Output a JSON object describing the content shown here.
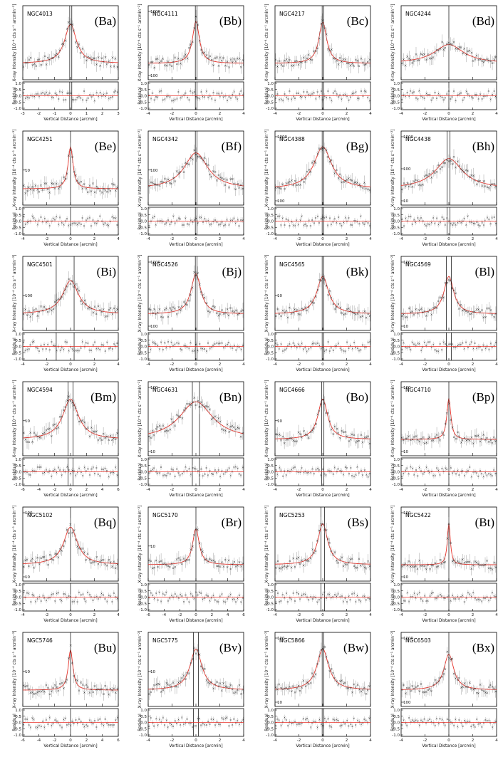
{
  "figure": {
    "common": {
      "xlabel": "Vertical Distance [arcmin]",
      "ylabel_top": "X-ray Intensity [10⁻⁴ cts s⁻¹ arcmin⁻²]",
      "ylabel_bottom": "Residual",
      "residual_ticks": [
        "1.0",
        "0.5",
        "0.0",
        "-0.5",
        "-1.0"
      ],
      "model_color": "#e8322a",
      "data_color": "#222222"
    }
  },
  "chart_data": [
    {
      "type": "scatter",
      "panel": "(Ba)",
      "name": "NGC4013",
      "xlim": [
        -3,
        3
      ],
      "xticks": [
        -3,
        -2,
        -1,
        0,
        1,
        2,
        3
      ],
      "yticks": [],
      "peak": 4.5,
      "base": 1.0,
      "width": 0.45,
      "vlines": [
        -0.05,
        0.08
      ],
      "log": true
    },
    {
      "type": "scatter",
      "panel": "(Bb)",
      "name": "NGC4111",
      "xlim": [
        -4,
        4
      ],
      "xticks": [
        -4,
        -2,
        0,
        2,
        4
      ],
      "yticks": [
        "1000",
        "100"
      ],
      "peak": 6.0,
      "base": 1.0,
      "width": 0.35,
      "vlines": [
        -0.05,
        0.08
      ],
      "log": true
    },
    {
      "type": "scatter",
      "panel": "(Bc)",
      "name": "NGC4217",
      "xlim": [
        -4,
        4
      ],
      "xticks": [
        -4,
        -2,
        0,
        2,
        4
      ],
      "yticks": [],
      "peak": 5.5,
      "base": 1.0,
      "width": 0.4,
      "vlines": [
        -0.05,
        0.08
      ],
      "log": true
    },
    {
      "type": "scatter",
      "panel": "(Bd)",
      "name": "NGC4244",
      "xlim": [
        -4,
        4
      ],
      "xticks": [
        -4,
        -2,
        0,
        2,
        4
      ],
      "yticks": [],
      "peak": 1.6,
      "base": 1.0,
      "width": 1.5,
      "vlines": [
        0
      ],
      "log": true
    },
    {
      "type": "scatter",
      "panel": "(Be)",
      "name": "NGC4251",
      "xlim": [
        -4,
        4
      ],
      "xticks": [
        -4,
        -2,
        0,
        2,
        4
      ],
      "yticks": [
        "10"
      ],
      "peak": 6.0,
      "base": 1.0,
      "width": 0.25,
      "vlines": [
        0
      ],
      "log": true
    },
    {
      "type": "scatter",
      "panel": "(Bf)",
      "name": "NGC4342",
      "xlim": [
        -4,
        4
      ],
      "xticks": [
        -4,
        -2,
        0,
        2,
        4
      ],
      "yticks": [
        "100"
      ],
      "peak": 3.5,
      "base": 1.0,
      "width": 1.2,
      "vlines": [
        -0.05,
        0.08
      ],
      "log": true
    },
    {
      "type": "scatter",
      "panel": "(Bg)",
      "name": "NGC4388",
      "xlim": [
        -4,
        4
      ],
      "xticks": [
        -4,
        -2,
        0,
        2,
        4
      ],
      "yticks": [
        "1000",
        "100"
      ],
      "peak": 6.0,
      "base": 1.0,
      "width": 0.9,
      "vlines": [
        -0.05,
        0.08
      ],
      "log": true
    },
    {
      "type": "scatter",
      "panel": "(Bh)",
      "name": "NGC4438",
      "xlim": [
        -4,
        4
      ],
      "xticks": [
        -4,
        -2,
        0,
        2,
        4
      ],
      "yticks": [
        "1000",
        "100",
        "10"
      ],
      "peak": 2.5,
      "base": 1.0,
      "width": 1.4,
      "vlines": [
        -0.15,
        0.1
      ],
      "log": true
    },
    {
      "type": "scatter",
      "panel": "(Bi)",
      "name": "NGC4501",
      "xlim": [
        -4,
        4
      ],
      "xticks": [
        -4,
        -2,
        0,
        2,
        4
      ],
      "yticks": [
        "100"
      ],
      "peak": 3.0,
      "base": 1.0,
      "width": 0.8,
      "vlines": [
        -1.2,
        0.3
      ],
      "log": true
    },
    {
      "type": "scatter",
      "panel": "(Bj)",
      "name": "NGC4526",
      "xlim": [
        -4,
        4
      ],
      "xticks": [
        -4,
        -2,
        0,
        2,
        4
      ],
      "yticks": [
        "1000",
        "100"
      ],
      "peak": 5.0,
      "base": 1.0,
      "width": 0.5,
      "vlines": [
        -0.05,
        0.08
      ],
      "log": true
    },
    {
      "type": "scatter",
      "panel": "(Bk)",
      "name": "NGC4565",
      "xlim": [
        -4,
        4
      ],
      "xticks": [
        -4,
        -2,
        0,
        2,
        4
      ],
      "yticks": [
        "10"
      ],
      "peak": 4.0,
      "base": 1.0,
      "width": 0.6,
      "vlines": [
        -0.05,
        0.08
      ],
      "log": true
    },
    {
      "type": "scatter",
      "panel": "(Bl)",
      "name": "NGC4569",
      "xlim": [
        -4,
        4
      ],
      "xticks": [
        -4,
        -2,
        0,
        2,
        4
      ],
      "yticks": [
        "100",
        "10"
      ],
      "peak": 4.0,
      "base": 1.0,
      "width": 0.5,
      "vlines": [
        -0.2,
        0.2
      ],
      "log": true
    },
    {
      "type": "scatter",
      "panel": "(Bm)",
      "name": "NGC4594",
      "xlim": [
        -6,
        6
      ],
      "xticks": [
        -6,
        -4,
        -2,
        0,
        2,
        4,
        6
      ],
      "yticks": [
        "10"
      ],
      "peak": 5.0,
      "base": 1.0,
      "width": 1.2,
      "vlines": [
        -0.3,
        0.3
      ],
      "log": true
    },
    {
      "type": "scatter",
      "panel": "(Bn)",
      "name": "NGC4631",
      "xlim": [
        -4,
        4
      ],
      "xticks": [
        -4,
        -2,
        0,
        2,
        4
      ],
      "yticks": [
        "100",
        "10"
      ],
      "peak": 4.0,
      "base": 1.0,
      "width": 1.7,
      "vlines": [
        -0.3,
        0.3
      ],
      "log": true
    },
    {
      "type": "scatter",
      "panel": "(Bo)",
      "name": "NGC4666",
      "xlim": [
        -4,
        4
      ],
      "xticks": [
        -4,
        -2,
        0,
        2,
        4
      ],
      "yticks": [
        "10"
      ],
      "peak": 5.0,
      "base": 1.0,
      "width": 0.5,
      "vlines": [
        -0.1,
        0.1
      ],
      "log": true
    },
    {
      "type": "scatter",
      "panel": "(Bp)",
      "name": "NGC4710",
      "xlim": [
        -4,
        4
      ],
      "xticks": [
        -4,
        -2,
        0,
        2,
        4
      ],
      "yticks": [
        "100",
        "10"
      ],
      "peak": 5.5,
      "base": 1.0,
      "width": 0.2,
      "vlines": [
        0
      ],
      "log": true
    },
    {
      "type": "scatter",
      "panel": "(Bq)",
      "name": "NGC5102",
      "xlim": [
        -4,
        4
      ],
      "xticks": [
        -4,
        -2,
        0,
        2,
        4
      ],
      "yticks": [
        "100",
        "10"
      ],
      "peak": 4.0,
      "base": 1.0,
      "width": 0.7,
      "vlines": [
        0
      ],
      "log": true
    },
    {
      "type": "scatter",
      "panel": "(Br)",
      "name": "NGC5170",
      "xlim": [
        -6,
        6
      ],
      "xticks": [
        -6,
        -4,
        -2,
        0,
        2,
        4,
        6
      ],
      "yticks": [
        "10"
      ],
      "peak": 3.5,
      "base": 1.0,
      "width": 0.5,
      "vlines": [
        0
      ],
      "log": true
    },
    {
      "type": "scatter",
      "panel": "(Bs)",
      "name": "NGC5253",
      "xlim": [
        -4,
        4
      ],
      "xticks": [
        -4,
        -2,
        0,
        2,
        4
      ],
      "yticks": [],
      "peak": 5.5,
      "base": 1.0,
      "width": 0.5,
      "vlines": [
        -0.15,
        0.15
      ],
      "log": true
    },
    {
      "type": "scatter",
      "panel": "(Bt)",
      "name": "NGC5422",
      "xlim": [
        -4,
        4
      ],
      "xticks": [
        -4,
        -2,
        0,
        2,
        4
      ],
      "yticks": [
        "100",
        "10"
      ],
      "peak": 6.0,
      "base": 1.0,
      "width": 0.15,
      "vlines": [
        0
      ],
      "log": true
    },
    {
      "type": "scatter",
      "panel": "(Bu)",
      "name": "NGC5746",
      "xlim": [
        -6,
        6
      ],
      "xticks": [
        -6,
        -4,
        -2,
        0,
        2,
        4,
        6
      ],
      "yticks": [
        "10"
      ],
      "peak": 5.0,
      "base": 1.0,
      "width": 0.35,
      "vlines": [
        0
      ],
      "log": true
    },
    {
      "type": "scatter",
      "panel": "(Bv)",
      "name": "NGC5775",
      "xlim": [
        -4,
        4
      ],
      "xticks": [
        -4,
        -2,
        0,
        2,
        4
      ],
      "yticks": [
        "10"
      ],
      "peak": 5.5,
      "base": 1.0,
      "width": 0.6,
      "vlines": [
        -0.2,
        0.2
      ],
      "log": true
    },
    {
      "type": "scatter",
      "panel": "(Bw)",
      "name": "NGC5866",
      "xlim": [
        -4,
        4
      ],
      "xticks": [
        -4,
        -2,
        0,
        2,
        4
      ],
      "yticks": [
        "100",
        "10"
      ],
      "peak": 5.5,
      "base": 1.0,
      "width": 0.6,
      "vlines": [
        -0.05,
        0.08
      ],
      "log": true
    },
    {
      "type": "scatter",
      "panel": "(Bx)",
      "name": "NGC6503",
      "xlim": [
        -4,
        4
      ],
      "xticks": [
        -4,
        -2,
        0,
        2,
        4
      ],
      "yticks": [
        "1000",
        "100"
      ],
      "peak": 3.5,
      "base": 1.0,
      "width": 0.5,
      "vlines": [
        0
      ],
      "log": true
    }
  ]
}
